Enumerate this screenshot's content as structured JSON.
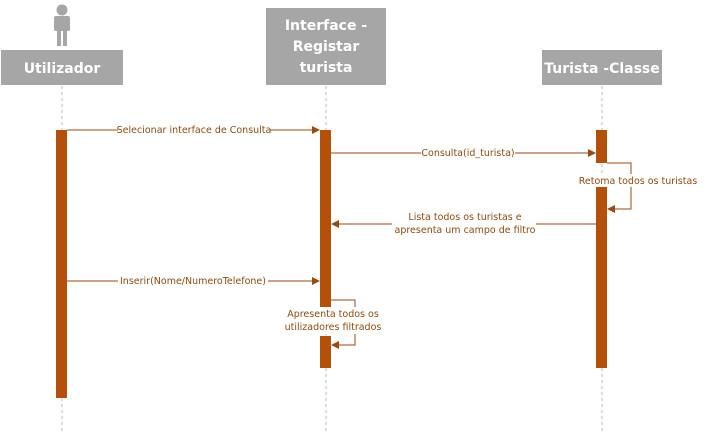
{
  "participants": {
    "utilizador": "Utilizador",
    "interface": [
      "Interface -",
      "Registar",
      "turista"
    ],
    "turista": "Turista -Classe"
  },
  "messages": {
    "m1": "Selecionar interface de Consulta",
    "m2": "Consulta(id_turista)",
    "m3": "Retoma todos os turistas",
    "m4": [
      "Lista todos os turistas e",
      "apresenta um campo de filtro"
    ],
    "m5": "Inserir(Nome/NumeroTelefone)",
    "m6": [
      "Apresenta todos os",
      "utilizadores filtrados"
    ]
  },
  "colors": {
    "header": "#a6a6a6",
    "activation": "#b5500b",
    "arrow": "#9c4a10",
    "label_text": "#8c4a0f",
    "lifeline": "#b8b8b8",
    "actor_icon": "#a6a6a6"
  }
}
